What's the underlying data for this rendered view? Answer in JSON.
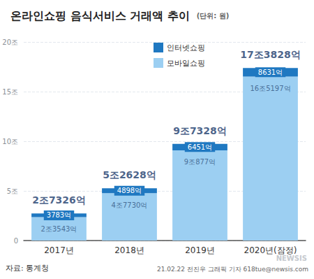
{
  "chart_data": {
    "type": "bar",
    "title": "온라인쇼핑 음식서비스 거래액 추이",
    "unit": "(단위: 원)",
    "categories": [
      "2017년",
      "2018년",
      "2019년",
      "2020년(잠정)"
    ],
    "series": [
      {
        "name": "모바일쇼핑",
        "color": "#9ccff2",
        "values": [
          2354300000000,
          4773000000000,
          9087700000000,
          16519700000000
        ],
        "value_labels": [
          "2조3543억",
          "4조7730억",
          "9조877억",
          "16조5197억"
        ]
      },
      {
        "name": "인터넷쇼핑",
        "color": "#1f78c1",
        "values": [
          378300000000,
          489800000000,
          645100000000,
          863100000000
        ],
        "value_labels": [
          "3783억",
          "4898억",
          "6451억",
          "8631억"
        ]
      }
    ],
    "totals": [
      2732600000000,
      5262800000000,
      9732800000000,
      17382800000000
    ],
    "total_labels": [
      "2조7326억",
      "5조2628억",
      "9조7328억",
      "17조3828억"
    ],
    "ylim": [
      0,
      20000000000000
    ],
    "yticks": [
      0,
      {
        "value": 5000000000000,
        "label": "5조"
      },
      {
        "value": 10000000000000,
        "label": "10조"
      },
      {
        "value": 15000000000000,
        "label": "15조"
      },
      {
        "value": 20000000000000,
        "label": "20조"
      }
    ],
    "stacked": true,
    "data_labels": true,
    "grid": true,
    "legend": "top",
    "source": "자료: 통계청",
    "credit": "21.02.22 전진우 그래픽 기자 618tue@newsis.com",
    "watermark": "NEWSIS"
  }
}
